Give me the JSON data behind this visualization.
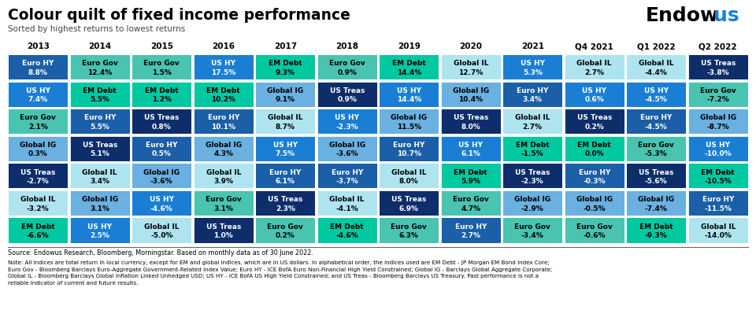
{
  "title": "Colour quilt of fixed income performance",
  "subtitle": "Sorted by highest returns to lowest returns",
  "columns": [
    "2013",
    "2014",
    "2015",
    "2016",
    "2017",
    "2018",
    "2019",
    "2020",
    "2021",
    "Q4 2021",
    "Q1 2022",
    "Q2 2022"
  ],
  "source_text": "Source: Endowus Research, Bloomberg, Morningstar. Based on monthly data as of 30 June 2022.",
  "note_text": "Note: All indices are total return in local currency, except for EM and global indices, which are in US dollars. In alphabetical order, the indices used are EM Debt - JP Morgan EM Bond Index Core;\nEuro Gov - Bloomberg Barclays Euro-Aggregate Government-Related Index Value; Euro HY - ICE BofA Euro Non-Financial High Yield Constrained; Global IG - Barclays Global Aggregate Corporate;\nGlobal IL - Bloomberg Barclays Global Inflation Linked Unhedged USD; US HY - ICE BofA US High Yield Constrained; and US Treas - Bloomberg Barclays US Treasury. Past performance is not a\nreliable indicator of current and future results.",
  "cells": [
    [
      {
        "label": "Euro HY",
        "value": "8.8%",
        "color": "#1a5fa8"
      },
      {
        "label": "Euro Gov",
        "value": "12.4%",
        "color": "#48c4b0"
      },
      {
        "label": "Euro Gov",
        "value": "1.5%",
        "color": "#48c4b0"
      },
      {
        "label": "US HY",
        "value": "17.5%",
        "color": "#1a7fd4"
      },
      {
        "label": "EM Debt",
        "value": "9.3%",
        "color": "#00c8a0"
      },
      {
        "label": "Euro Gov",
        "value": "0.9%",
        "color": "#48c4b0"
      },
      {
        "label": "EM Debt",
        "value": "14.4%",
        "color": "#00c8a0"
      },
      {
        "label": "Global IL",
        "value": "12.7%",
        "color": "#aee4f0"
      },
      {
        "label": "US HY",
        "value": "5.3%",
        "color": "#1a7fd4"
      },
      {
        "label": "Global IL",
        "value": "2.7%",
        "color": "#aee4f0"
      },
      {
        "label": "Global IL",
        "value": "-4.4%",
        "color": "#aee4f0"
      },
      {
        "label": "US Treas",
        "value": "-3.8%",
        "color": "#0d2d6b"
      }
    ],
    [
      {
        "label": "US HY",
        "value": "7.4%",
        "color": "#1a7fd4"
      },
      {
        "label": "EM Debt",
        "value": "5.5%",
        "color": "#00c8a0"
      },
      {
        "label": "EM Debt",
        "value": "1.2%",
        "color": "#00c8a0"
      },
      {
        "label": "EM Debt",
        "value": "10.2%",
        "color": "#00c8a0"
      },
      {
        "label": "Global IG",
        "value": "9.1%",
        "color": "#6ab0e0"
      },
      {
        "label": "US Treas",
        "value": "0.9%",
        "color": "#0d2d6b"
      },
      {
        "label": "US HY",
        "value": "14.4%",
        "color": "#1a7fd4"
      },
      {
        "label": "Global IG",
        "value": "10.4%",
        "color": "#6ab0e0"
      },
      {
        "label": "Euro HY",
        "value": "3.4%",
        "color": "#1a5fa8"
      },
      {
        "label": "US HY",
        "value": "0.6%",
        "color": "#1a7fd4"
      },
      {
        "label": "US HY",
        "value": "-4.5%",
        "color": "#1a7fd4"
      },
      {
        "label": "Euro Gov",
        "value": "-7.2%",
        "color": "#48c4b0"
      }
    ],
    [
      {
        "label": "Euro Gov",
        "value": "2.1%",
        "color": "#48c4b0"
      },
      {
        "label": "Euro HY",
        "value": "5.5%",
        "color": "#1a5fa8"
      },
      {
        "label": "US Treas",
        "value": "0.8%",
        "color": "#0d2d6b"
      },
      {
        "label": "Euro HY",
        "value": "10.1%",
        "color": "#1a5fa8"
      },
      {
        "label": "Global IL",
        "value": "8.7%",
        "color": "#aee4f0"
      },
      {
        "label": "US HY",
        "value": "-2.3%",
        "color": "#1a7fd4"
      },
      {
        "label": "Global IG",
        "value": "11.5%",
        "color": "#6ab0e0"
      },
      {
        "label": "US Treas",
        "value": "8.0%",
        "color": "#0d2d6b"
      },
      {
        "label": "Global IL",
        "value": "2.7%",
        "color": "#aee4f0"
      },
      {
        "label": "US Treas",
        "value": "0.2%",
        "color": "#0d2d6b"
      },
      {
        "label": "Euro HY",
        "value": "-4.5%",
        "color": "#1a5fa8"
      },
      {
        "label": "Global IG",
        "value": "-8.7%",
        "color": "#6ab0e0"
      }
    ],
    [
      {
        "label": "Global IG",
        "value": "0.3%",
        "color": "#6ab0e0"
      },
      {
        "label": "US Treas",
        "value": "5.1%",
        "color": "#0d2d6b"
      },
      {
        "label": "Euro HY",
        "value": "0.5%",
        "color": "#1a5fa8"
      },
      {
        "label": "Global IG",
        "value": "4.3%",
        "color": "#6ab0e0"
      },
      {
        "label": "US HY",
        "value": "7.5%",
        "color": "#1a7fd4"
      },
      {
        "label": "Global IG",
        "value": "-3.6%",
        "color": "#6ab0e0"
      },
      {
        "label": "Euro HY",
        "value": "10.7%",
        "color": "#1a5fa8"
      },
      {
        "label": "US HY",
        "value": "6.1%",
        "color": "#1a7fd4"
      },
      {
        "label": "EM Debt",
        "value": "-1.5%",
        "color": "#00c8a0"
      },
      {
        "label": "EM Debt",
        "value": "0.0%",
        "color": "#00c8a0"
      },
      {
        "label": "Euro Gov",
        "value": "-5.3%",
        "color": "#48c4b0"
      },
      {
        "label": "US HY",
        "value": "-10.0%",
        "color": "#1a7fd4"
      }
    ],
    [
      {
        "label": "US Treas",
        "value": "-2.7%",
        "color": "#0d2d6b"
      },
      {
        "label": "Global IL",
        "value": "3.4%",
        "color": "#aee4f0"
      },
      {
        "label": "Global IG",
        "value": "-3.6%",
        "color": "#6ab0e0"
      },
      {
        "label": "Global IL",
        "value": "3.9%",
        "color": "#aee4f0"
      },
      {
        "label": "Euro HY",
        "value": "6.1%",
        "color": "#1a5fa8"
      },
      {
        "label": "Euro HY",
        "value": "-3.7%",
        "color": "#1a5fa8"
      },
      {
        "label": "Global IL",
        "value": "8.0%",
        "color": "#aee4f0"
      },
      {
        "label": "EM Debt",
        "value": "5.9%",
        "color": "#00c8a0"
      },
      {
        "label": "US Treas",
        "value": "-2.3%",
        "color": "#0d2d6b"
      },
      {
        "label": "Euro HY",
        "value": "-0.3%",
        "color": "#1a5fa8"
      },
      {
        "label": "US Treas",
        "value": "-5.6%",
        "color": "#0d2d6b"
      },
      {
        "label": "EM Debt",
        "value": "-10.5%",
        "color": "#00c8a0"
      }
    ],
    [
      {
        "label": "Global IL",
        "value": "-3.2%",
        "color": "#aee4f0"
      },
      {
        "label": "Global IG",
        "value": "3.1%",
        "color": "#6ab0e0"
      },
      {
        "label": "US HY",
        "value": "-4.6%",
        "color": "#1a7fd4"
      },
      {
        "label": "Euro Gov",
        "value": "3.1%",
        "color": "#48c4b0"
      },
      {
        "label": "US Treas",
        "value": "2.3%",
        "color": "#0d2d6b"
      },
      {
        "label": "Global IL",
        "value": "-4.1%",
        "color": "#aee4f0"
      },
      {
        "label": "US Treas",
        "value": "6.9%",
        "color": "#0d2d6b"
      },
      {
        "label": "Euro Gov",
        "value": "4.7%",
        "color": "#48c4b0"
      },
      {
        "label": "Global IG",
        "value": "-2.9%",
        "color": "#6ab0e0"
      },
      {
        "label": "Global IG",
        "value": "-0.5%",
        "color": "#6ab0e0"
      },
      {
        "label": "Global IG",
        "value": "-7.4%",
        "color": "#6ab0e0"
      },
      {
        "label": "Euro HY",
        "value": "-11.5%",
        "color": "#1a5fa8"
      }
    ],
    [
      {
        "label": "EM Debt",
        "value": "-6.6%",
        "color": "#00c8a0"
      },
      {
        "label": "US HY",
        "value": "2.5%",
        "color": "#1a7fd4"
      },
      {
        "label": "Global IL",
        "value": "-5.0%",
        "color": "#aee4f0"
      },
      {
        "label": "US Treas",
        "value": "1.0%",
        "color": "#0d2d6b"
      },
      {
        "label": "Euro Gov",
        "value": "0.2%",
        "color": "#48c4b0"
      },
      {
        "label": "EM Debt",
        "value": "-4.6%",
        "color": "#00c8a0"
      },
      {
        "label": "Euro Gov",
        "value": "6.3%",
        "color": "#48c4b0"
      },
      {
        "label": "Euro HY",
        "value": "2.7%",
        "color": "#1a5fa8"
      },
      {
        "label": "Euro Gov",
        "value": "-3.4%",
        "color": "#48c4b0"
      },
      {
        "label": "Euro Gov",
        "value": "-0.6%",
        "color": "#48c4b0"
      },
      {
        "label": "EM Debt",
        "value": "-9.3%",
        "color": "#00c8a0"
      },
      {
        "label": "Global IL",
        "value": "-14.0%",
        "color": "#aee4f0"
      }
    ]
  ]
}
